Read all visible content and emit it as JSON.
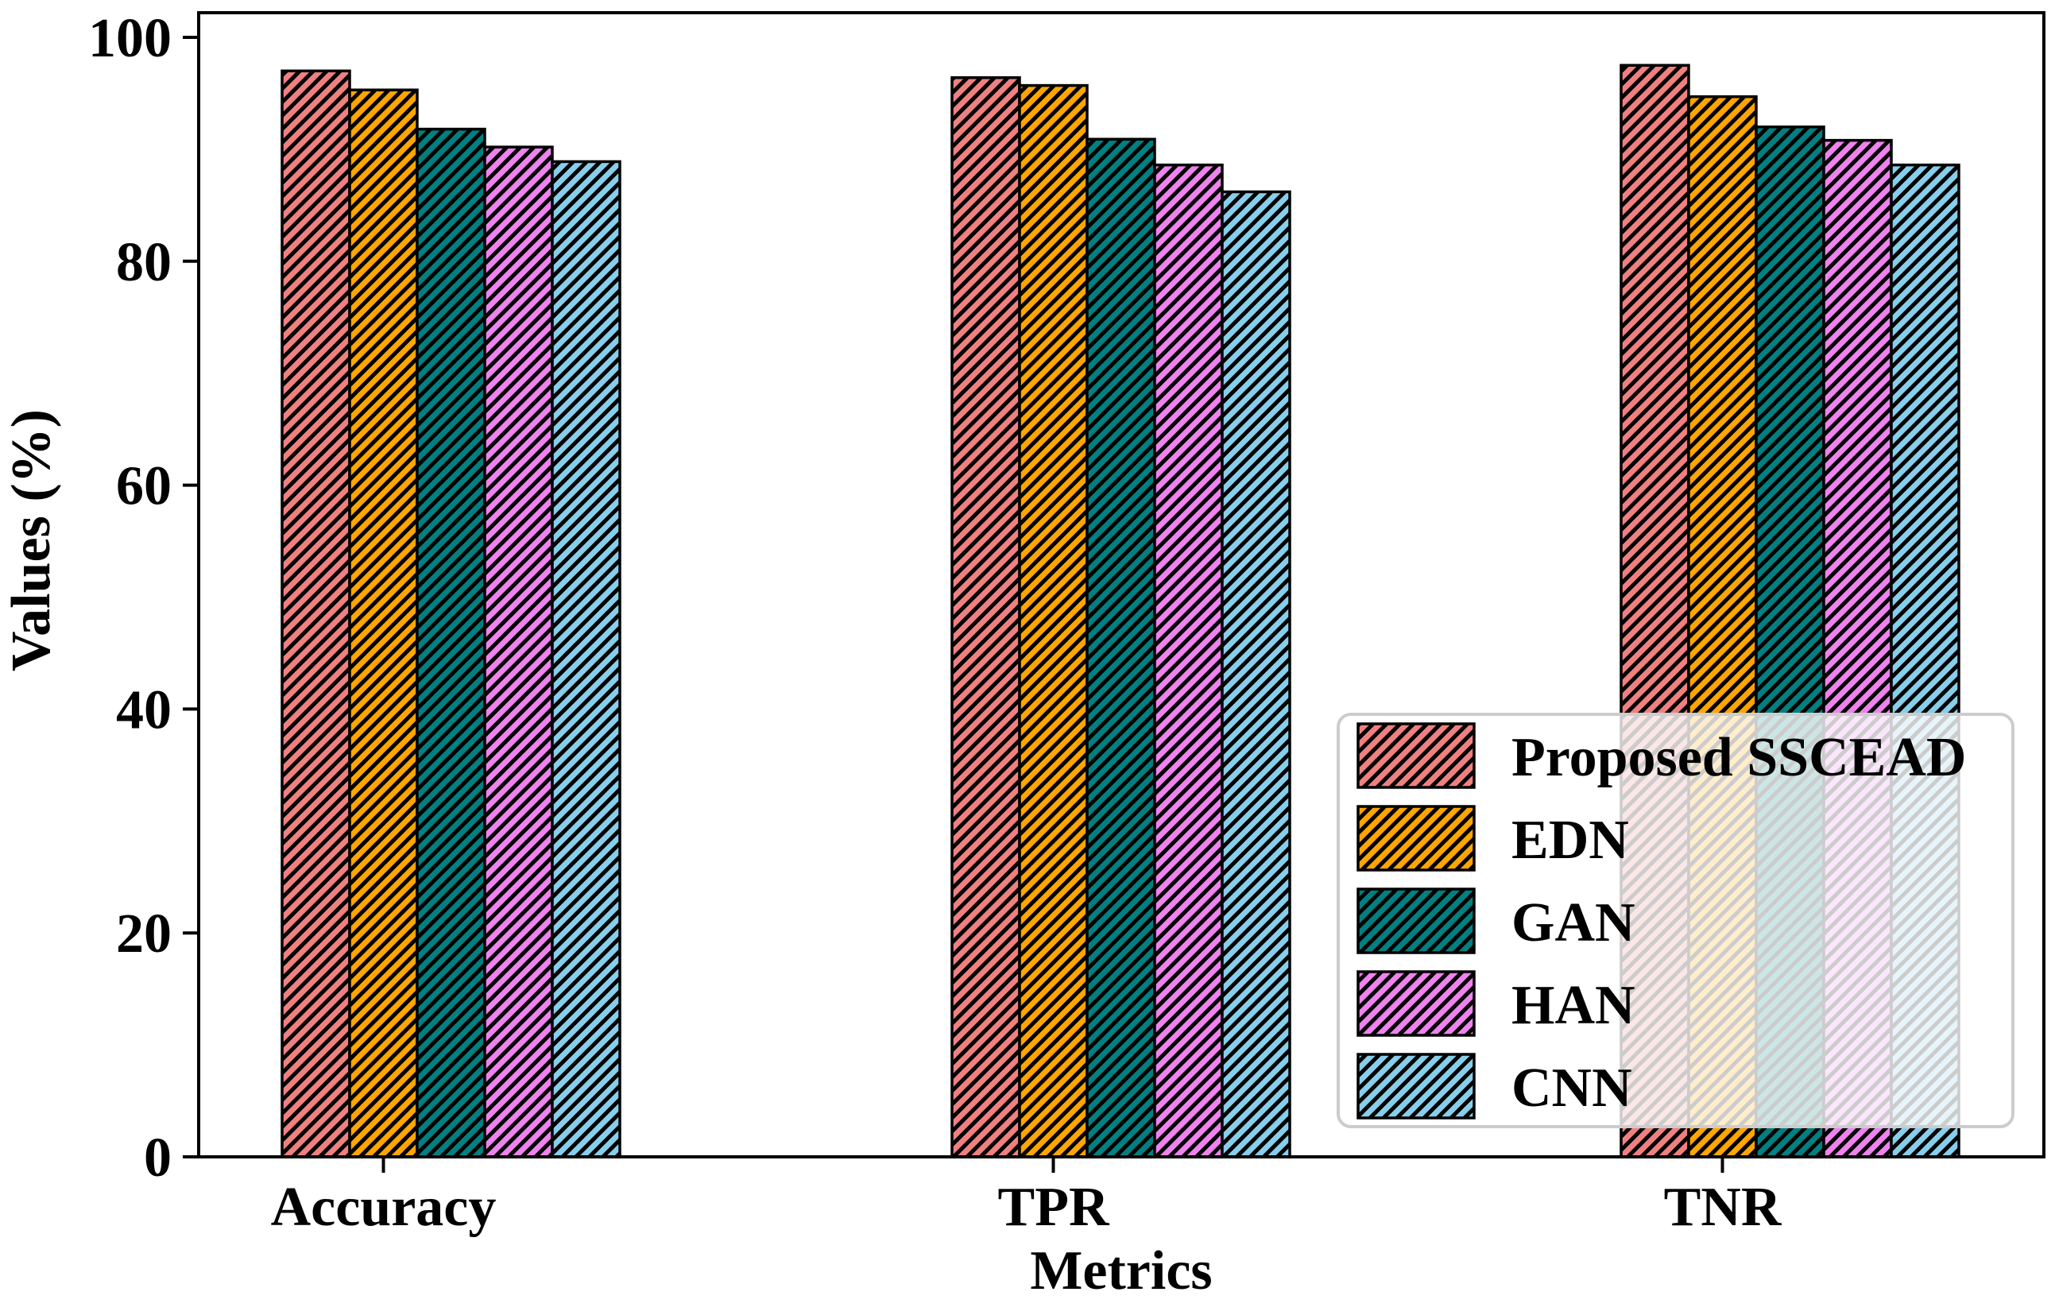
{
  "chart_data": {
    "type": "bar",
    "title": "",
    "xlabel": "Metrics",
    "ylabel": "Values (%)",
    "categories": [
      "Accuracy",
      "TPR",
      "TNR"
    ],
    "series": [
      {
        "name": "Proposed SSCEAD",
        "color": "#F08080",
        "values": [
          97.0,
          96.4,
          97.5
        ]
      },
      {
        "name": "EDN",
        "color": "#FFA500",
        "values": [
          95.3,
          95.7,
          94.7
        ]
      },
      {
        "name": "GAN",
        "color": "#008080",
        "values": [
          91.8,
          90.9,
          92.0
        ]
      },
      {
        "name": "HAN",
        "color": "#EE82EE",
        "values": [
          90.2,
          88.6,
          90.8
        ]
      },
      {
        "name": "CNN",
        "color": "#87CEEB",
        "values": [
          88.9,
          86.2,
          88.6
        ]
      }
    ],
    "ylim": [
      0,
      100
    ],
    "yticks": [
      0,
      20,
      40,
      60,
      80,
      100
    ],
    "ytick_labels": [
      "0",
      "20",
      "40",
      "60",
      "80",
      "100"
    ],
    "hatch": "///",
    "hatch_color": "#000000",
    "bar_edge_color": "#000000",
    "grid": false,
    "legend_position": "lower-right-inside",
    "legend_background": "#ffffff",
    "legend_border_color": "#cccccc",
    "axis_color": "#000000"
  }
}
